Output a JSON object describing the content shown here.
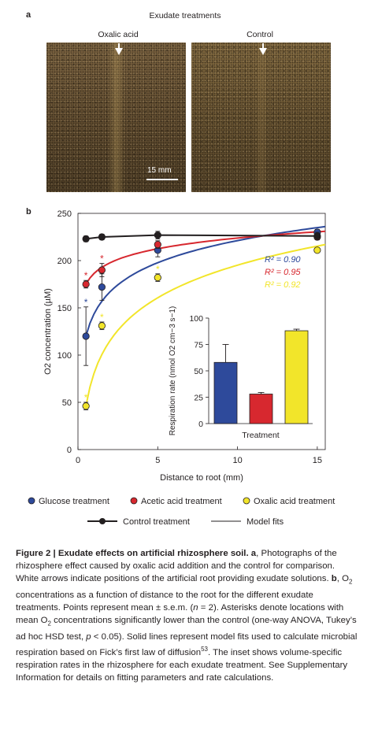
{
  "panel_a": {
    "letter": "a",
    "title": "Exudate treatments",
    "left_label": "Oxalic acid",
    "right_label": "Control",
    "scalebar": "15 mm"
  },
  "panel_b": {
    "letter": "b"
  },
  "chart_data": [
    {
      "type": "scatter",
      "xlabel": "Distance to root (mm)",
      "ylabel": "O2 concentration (µM)",
      "xlim": [
        0,
        15.5
      ],
      "ylim": [
        0,
        250
      ],
      "xticks": [
        "0",
        "5",
        "10",
        "15"
      ],
      "yticks": [
        "0",
        "50",
        "100",
        "150",
        "200",
        "250"
      ],
      "grid": false,
      "legend": "bottom",
      "series": [
        {
          "name": "Glucose treatment",
          "color": "#2e4a9b",
          "x": [
            0.5,
            1.5,
            5,
            15
          ],
          "y": [
            120,
            172,
            211,
            230
          ],
          "err": [
            31,
            14,
            7,
            3
          ],
          "asterisk": [
            true,
            true,
            false,
            false
          ]
        },
        {
          "name": "Acetic acid treatment",
          "color": "#d7282f",
          "x": [
            0.5,
            1.5,
            5,
            15
          ],
          "y": [
            175,
            190,
            217,
            225
          ],
          "err": [
            4,
            7,
            4,
            3
          ],
          "asterisk": [
            true,
            true,
            false,
            false
          ]
        },
        {
          "name": "Oxalic acid treatment",
          "color": "#f2e52a",
          "x": [
            0.5,
            1.5,
            5,
            15
          ],
          "y": [
            46,
            131,
            182,
            211
          ],
          "err": [
            4,
            4,
            4,
            2
          ],
          "asterisk": [
            true,
            true,
            true,
            false
          ]
        },
        {
          "name": "Control treatment",
          "color": "#231f20",
          "x": [
            0.5,
            1.5,
            5,
            15
          ],
          "y": [
            223,
            225,
            227,
            226
          ],
          "err": [
            3,
            3,
            4,
            4
          ],
          "asterisk": [
            false,
            false,
            false,
            false
          ]
        }
      ],
      "model_fits_label": "Model fits",
      "r2": [
        {
          "label": "R² = 0.90",
          "color": "#2e4a9b"
        },
        {
          "label": "R² = 0.95",
          "color": "#d7282f"
        },
        {
          "label": "R² = 0.92",
          "color": "#f2e52a"
        }
      ]
    },
    {
      "type": "bar",
      "xlabel": "Treatment",
      "ylabel": "Respiration rate (nmol O2 cm−3 s−1)",
      "ylim": [
        0,
        100
      ],
      "yticks": [
        "0",
        "25",
        "50",
        "75",
        "100"
      ],
      "values": [
        58,
        28,
        88
      ],
      "err": [
        17,
        1.5,
        1.5
      ],
      "colors": [
        "#2e4a9b",
        "#d7282f",
        "#f2e52a"
      ]
    }
  ],
  "legend": {
    "glucose": "Glucose treatment",
    "acetic": "Acetic acid treatment",
    "oxalic": "Oxalic acid treatment",
    "control": "Control treatment",
    "fits": "Model fits"
  },
  "caption": {
    "fig": "Figure 2 | Exudate effects on artificial rhizosphere soil.",
    "a_letter": "a",
    "a_text": ", Photographs of the rhizosphere effect caused by oxalic acid addition and the control for comparison. White arrows indicate positions of the artificial root providing exudate solutions.",
    "b_letter": "b",
    "b_text_1": ", O",
    "b_sub": "2",
    "b_text_2": " concentrations as a function of distance to the root for the different exudate treatments. Points represent mean ± s.e.m. (",
    "n_italic": "n",
    "b_text_3": " = 2). Asterisks denote locations with mean O",
    "b_sub2": "2",
    "b_text_4": " concentrations significantly lower than the control (one-way ANOVA, Tukey’s ad hoc HSD test, ",
    "p_italic": "p",
    "b_text_5": " < 0.05). Solid lines represent model fits used to calculate microbial respiration based on Fick’s first law of diffusion",
    "ref": "53",
    "b_text_6": ". The inset shows volume-specific respiration rates in the rhizosphere for each exudate treatment. See Supplementary Information for details on fitting parameters and rate calculations."
  }
}
